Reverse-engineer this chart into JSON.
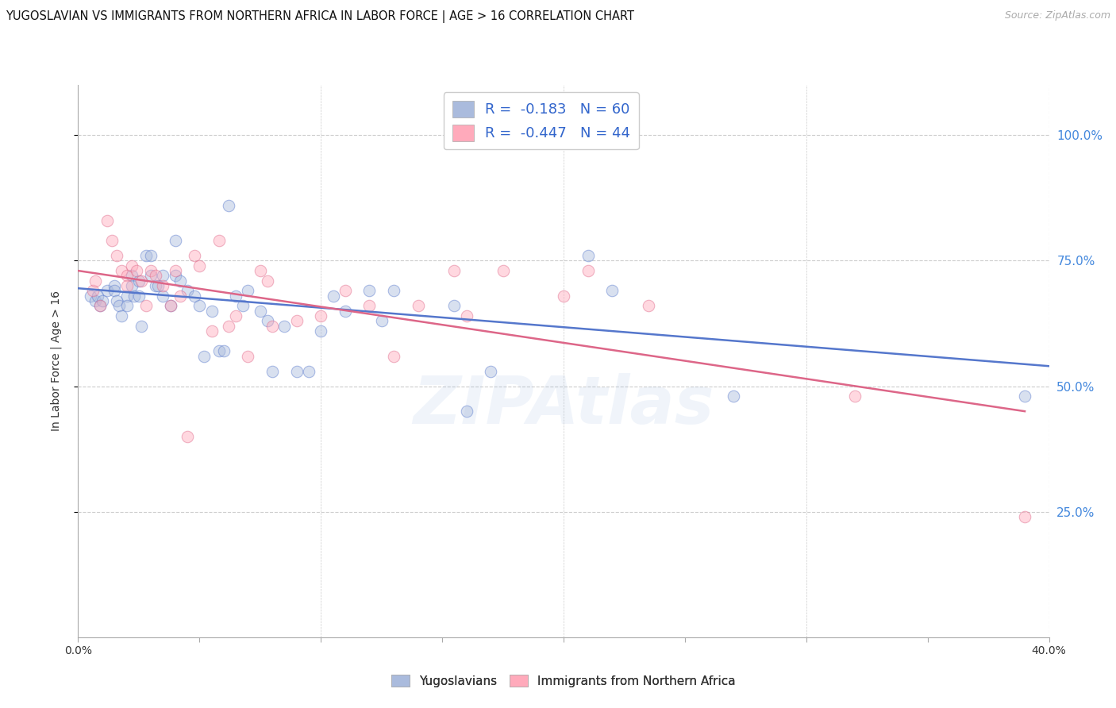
{
  "title": "YUGOSLAVIAN VS IMMIGRANTS FROM NORTHERN AFRICA IN LABOR FORCE | AGE > 16 CORRELATION CHART",
  "source": "Source: ZipAtlas.com",
  "ylabel": "In Labor Force | Age > 16",
  "xlim": [
    0.0,
    0.4
  ],
  "ylim": [
    0.0,
    1.1
  ],
  "yticks": [
    0.25,
    0.5,
    0.75,
    1.0
  ],
  "ytick_labels": [
    "25.0%",
    "50.0%",
    "75.0%",
    "100.0%"
  ],
  "xticks": [
    0.0,
    0.05,
    0.1,
    0.15,
    0.2,
    0.25,
    0.3,
    0.35,
    0.4
  ],
  "xtick_labels": [
    "0.0%",
    "",
    "",
    "",
    "",
    "",
    "",
    "",
    "40.0%"
  ],
  "grid_color": "#cccccc",
  "background_color": "#ffffff",
  "blue_color": "#aabbdd",
  "pink_color": "#ffaabb",
  "blue_line_color": "#5577cc",
  "pink_line_color": "#dd6688",
  "blue_label": "Yugoslavians",
  "pink_label": "Immigrants from Northern Africa",
  "legend_text_color": "#3366cc",
  "R_blue": "-0.183",
  "N_blue": "60",
  "R_pink": "-0.447",
  "N_pink": "44",
  "blue_scatter_x": [
    0.005,
    0.007,
    0.008,
    0.009,
    0.01,
    0.012,
    0.015,
    0.015,
    0.016,
    0.017,
    0.018,
    0.02,
    0.02,
    0.022,
    0.022,
    0.023,
    0.025,
    0.025,
    0.026,
    0.028,
    0.03,
    0.03,
    0.032,
    0.033,
    0.035,
    0.035,
    0.038,
    0.04,
    0.04,
    0.042,
    0.045,
    0.048,
    0.05,
    0.052,
    0.055,
    0.058,
    0.06,
    0.062,
    0.065,
    0.068,
    0.07,
    0.075,
    0.078,
    0.08,
    0.085,
    0.09,
    0.095,
    0.1,
    0.105,
    0.11,
    0.12,
    0.125,
    0.13,
    0.155,
    0.16,
    0.17,
    0.21,
    0.22,
    0.27,
    0.39
  ],
  "blue_scatter_y": [
    0.68,
    0.67,
    0.68,
    0.66,
    0.67,
    0.69,
    0.7,
    0.69,
    0.67,
    0.66,
    0.64,
    0.68,
    0.66,
    0.72,
    0.7,
    0.68,
    0.71,
    0.68,
    0.62,
    0.76,
    0.76,
    0.72,
    0.7,
    0.7,
    0.72,
    0.68,
    0.66,
    0.79,
    0.72,
    0.71,
    0.69,
    0.68,
    0.66,
    0.56,
    0.65,
    0.57,
    0.57,
    0.86,
    0.68,
    0.66,
    0.69,
    0.65,
    0.63,
    0.53,
    0.62,
    0.53,
    0.53,
    0.61,
    0.68,
    0.65,
    0.69,
    0.63,
    0.69,
    0.66,
    0.45,
    0.53,
    0.76,
    0.69,
    0.48,
    0.48
  ],
  "pink_scatter_x": [
    0.006,
    0.007,
    0.009,
    0.012,
    0.014,
    0.016,
    0.018,
    0.02,
    0.02,
    0.022,
    0.024,
    0.026,
    0.028,
    0.03,
    0.032,
    0.035,
    0.038,
    0.04,
    0.042,
    0.045,
    0.048,
    0.05,
    0.055,
    0.058,
    0.062,
    0.065,
    0.07,
    0.075,
    0.078,
    0.08,
    0.09,
    0.1,
    0.11,
    0.12,
    0.13,
    0.14,
    0.155,
    0.16,
    0.175,
    0.2,
    0.21,
    0.235,
    0.32,
    0.39
  ],
  "pink_scatter_y": [
    0.69,
    0.71,
    0.66,
    0.83,
    0.79,
    0.76,
    0.73,
    0.72,
    0.7,
    0.74,
    0.73,
    0.71,
    0.66,
    0.73,
    0.72,
    0.7,
    0.66,
    0.73,
    0.68,
    0.4,
    0.76,
    0.74,
    0.61,
    0.79,
    0.62,
    0.64,
    0.56,
    0.73,
    0.71,
    0.62,
    0.63,
    0.64,
    0.69,
    0.66,
    0.56,
    0.66,
    0.73,
    0.64,
    0.73,
    0.68,
    0.73,
    0.66,
    0.48,
    0.24
  ],
  "blue_line_x0": 0.0,
  "blue_line_x1": 0.4,
  "blue_line_y0": 0.695,
  "blue_line_y1": 0.54,
  "pink_line_x0": 0.0,
  "pink_line_x1": 0.39,
  "pink_line_y0": 0.73,
  "pink_line_y1": 0.45,
  "marker_size": 110,
  "marker_alpha": 0.45,
  "line_width": 1.8,
  "title_fontsize": 10.5,
  "axis_label_fontsize": 10,
  "tick_fontsize": 10,
  "right_tick_color": "#4488dd",
  "watermark_text": "ZIPAtlas",
  "watermark_alpha": 0.12,
  "watermark_color": "#88aadd"
}
